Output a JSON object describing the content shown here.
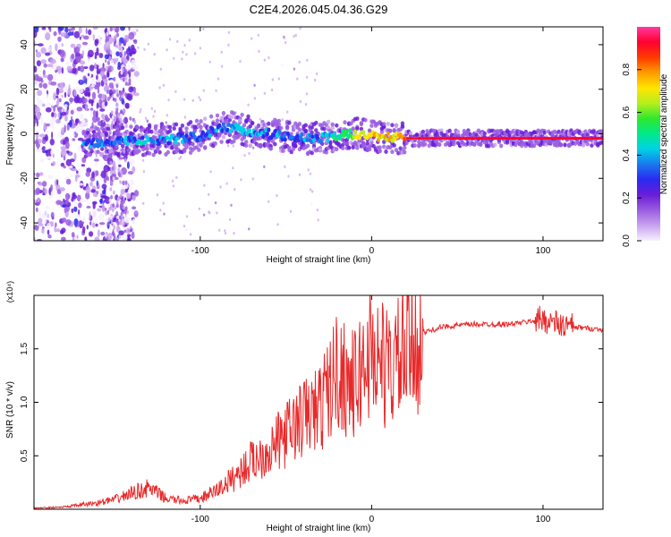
{
  "title": "C2E4.2026.045.04.36.G29",
  "chart_data": [
    {
      "type": "heatmap",
      "xlabel": "Height of straight line (km)",
      "ylabel": "Frequency (Hz)",
      "xlim": [
        -197,
        135
      ],
      "ylim": [
        -48,
        48
      ],
      "xticks": [
        -100,
        0,
        100
      ],
      "yticks": [
        -40,
        -20,
        0,
        20,
        40
      ],
      "colorbar": {
        "label": "Normalized spectral amplitude",
        "range": [
          0,
          1
        ],
        "ticks": [
          "0.0",
          "0.2",
          "0.4",
          "0.6",
          "0.8"
        ],
        "tick_values": [
          0,
          0.2,
          0.4,
          0.6,
          0.8
        ],
        "colors": [
          "#f7f0ff",
          "#c9a3ef",
          "#9a5de0",
          "#6a1ed8",
          "#2a2af0",
          "#1a78f0",
          "#00d2e6",
          "#00e98a",
          "#2ee82e",
          "#b6ee1e",
          "#ffe400",
          "#ff9a00",
          "#ff3a00",
          "#ff0030",
          "#ff3aa0"
        ]
      },
      "ridge": {
        "x": [
          -165,
          -150,
          -130,
          -110,
          -100,
          -90,
          -80,
          -70,
          -60,
          -50,
          -40,
          -30,
          -20,
          -10,
          0,
          20,
          40,
          60,
          80,
          100,
          120,
          135
        ],
        "y": [
          -4,
          -3,
          -3,
          -2,
          -1,
          2,
          3,
          1,
          0,
          -1,
          -2,
          -2,
          -1,
          0,
          -1,
          -2,
          -2,
          -2,
          -2,
          -2,
          -2,
          -2
        ],
        "amplitude": [
          0.35,
          0.35,
          0.4,
          0.35,
          0.35,
          0.35,
          0.4,
          0.4,
          0.35,
          0.35,
          0.35,
          0.4,
          0.5,
          0.6,
          0.7,
          0.75,
          0.85,
          0.9,
          0.9,
          0.9,
          0.9,
          0.9
        ]
      }
    },
    {
      "type": "line",
      "xlabel": "Height of straight line (km)",
      "ylabel": "SNR (10 * v/v)",
      "multiplier": "(x10⁴)",
      "xlim": [
        -197,
        135
      ],
      "ylim": [
        0,
        2.0
      ],
      "xticks": [
        -100,
        0,
        100
      ],
      "yticks": [
        0.5,
        1.0,
        1.5
      ],
      "ytick_labels": [
        "0.5",
        "1.0",
        "1.5"
      ],
      "series": [
        {
          "name": "SNR",
          "color": "#e8292a",
          "x": [
            -197,
            -180,
            -160,
            -150,
            -140,
            -130,
            -120,
            -110,
            -100,
            -90,
            -80,
            -70,
            -60,
            -50,
            -40,
            -30,
            -20,
            -10,
            0,
            10,
            20,
            30,
            40,
            50,
            60,
            70,
            80,
            90,
            100,
            110,
            120,
            135
          ],
          "envelope": [
            0.01,
            0.02,
            0.06,
            0.09,
            0.15,
            0.2,
            0.1,
            0.08,
            0.1,
            0.18,
            0.3,
            0.45,
            0.55,
            0.7,
            0.85,
            0.95,
            1.3,
            1.15,
            1.5,
            1.3,
            1.45,
            1.65,
            1.7,
            1.72,
            1.73,
            1.73,
            1.73,
            1.75,
            1.78,
            1.72,
            1.7,
            1.68
          ]
        }
      ]
    }
  ]
}
